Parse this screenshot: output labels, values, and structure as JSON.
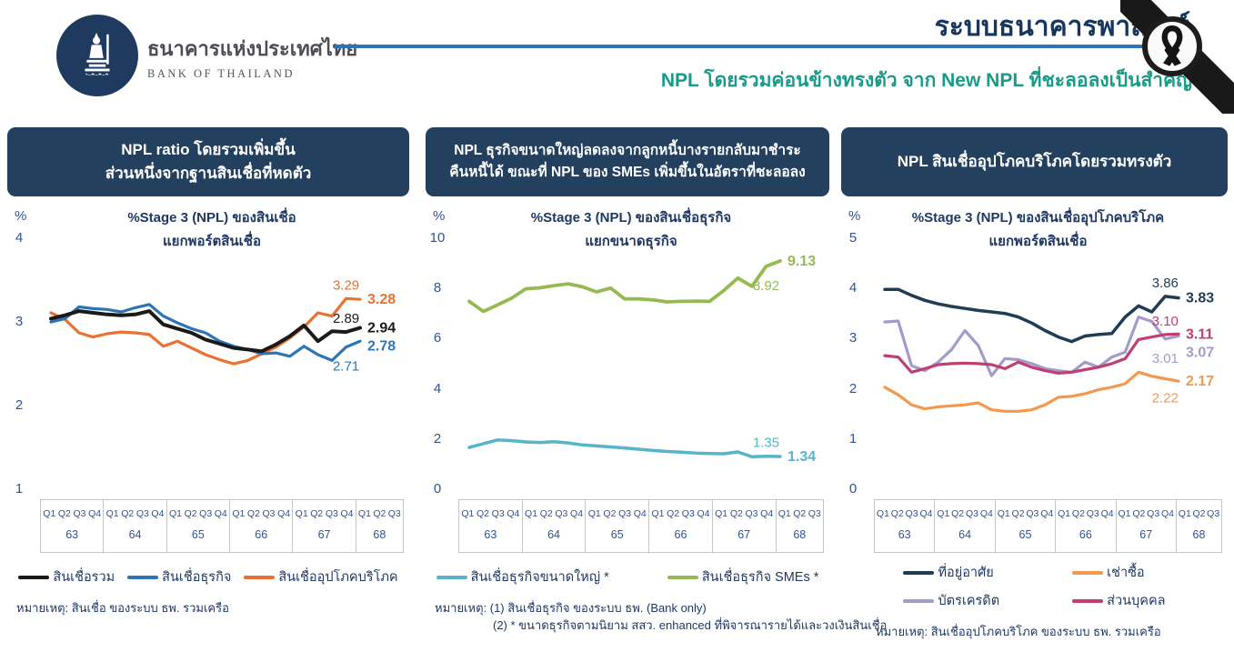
{
  "header": {
    "logo_title_th": "ธนาคารแห่งประเทศไทย",
    "logo_title_en": "BANK OF THAILAND",
    "page_title": "ระบบธนาคารพาณิชย์",
    "subtitle": "NPL โดยรวมค่อนข้างทรงตัว จาก New NPL ที่ชะลอลงเป็นสำคัญ",
    "corner_icon": "black-mourning-ribbon",
    "colors": {
      "title": "#17365D",
      "subtitle": "#189B88",
      "rule": "#2E74B5",
      "logo_bg": "#1E3A5F"
    }
  },
  "theme": {
    "panel_header_bg": "#24405F",
    "axis_text": "#2F5496",
    "note_text": "#1F3864",
    "grid_border": "#C6C6C6"
  },
  "panels": [
    {
      "headline_lines": [
        "NPL ratio โดยรวมเพิ่มขึ้น",
        "ส่วนหนึ่งจากฐานสินเชื่อที่หดตัว"
      ],
      "note_lines": [
        "หมายเหตุ: สินเชื่อ ของระบบ ธพ. รวมเครือ"
      ]
    },
    {
      "headline_lines": [
        "NPL ธุรกิจขนาดใหญ่ลดลงจากลูกหนี้บางรายกลับมาชำระ",
        "คืนหนี้ได้ ขณะที่ NPL ของ SMEs เพิ่มขึ้นในอัตราที่ชะลอลง"
      ],
      "note_lines": [
        "หมายเหตุ: (1) สินเชื่อธุรกิจ ของระบบ ธพ. (Bank only)",
        "(2) * ขนาดธุรกิจตามนิยาม สสว. enhanced ที่พิจารณารายได้และวงเงินสินเชื่อ"
      ]
    },
    {
      "headline_lines": [
        "NPL สินเชื่ออุปโภคบริโภคโดยรวมทรงตัว"
      ],
      "note_lines": [
        "หมายเหตุ: สินเชื่ออุปโภคบริโภค ของระบบ ธพ. รวมเครือ"
      ]
    }
  ],
  "chart_data": [
    {
      "type": "line",
      "unit": "%",
      "title_lines": [
        "%Stage 3 (NPL) ของสินเชื่อ",
        "แยกพอร์ตสินเชื่อ"
      ],
      "ylim": [
        1,
        4
      ],
      "yticks": [
        4,
        3,
        2,
        1
      ],
      "grid": false,
      "legend_layout": "row",
      "x_years": [
        {
          "label": "63",
          "quarters": [
            "Q1",
            "Q2",
            "Q3",
            "Q4"
          ]
        },
        {
          "label": "64",
          "quarters": [
            "Q1",
            "Q2",
            "Q3",
            "Q4"
          ]
        },
        {
          "label": "65",
          "quarters": [
            "Q1",
            "Q2",
            "Q3",
            "Q4"
          ]
        },
        {
          "label": "66",
          "quarters": [
            "Q1",
            "Q2",
            "Q3",
            "Q4"
          ]
        },
        {
          "label": "67",
          "quarters": [
            "Q1",
            "Q2",
            "Q3",
            "Q4"
          ]
        },
        {
          "label": "68",
          "quarters": [
            "Q1",
            "Q2",
            "Q3"
          ]
        }
      ],
      "series": [
        {
          "name": "สินเชื่อรวม",
          "color": "#1A1A1A",
          "width": 4,
          "z": 3,
          "values": [
            3.05,
            3.09,
            3.14,
            3.12,
            3.1,
            3.09,
            3.1,
            3.14,
            2.98,
            2.93,
            2.88,
            2.8,
            2.75,
            2.7,
            2.68,
            2.66,
            2.74,
            2.84,
            2.97,
            2.78,
            2.9,
            2.89,
            2.94
          ],
          "label_prev": "2.89",
          "label_last": "2.94"
        },
        {
          "name": "สินเชื่อธุรกิจ",
          "color": "#2E75B6",
          "width": 3.2,
          "z": 2,
          "prev_below": true,
          "values": [
            3.01,
            3.05,
            3.19,
            3.17,
            3.16,
            3.13,
            3.18,
            3.22,
            3.08,
            3.0,
            2.93,
            2.88,
            2.78,
            2.72,
            2.68,
            2.63,
            2.64,
            2.6,
            2.72,
            2.62,
            2.55,
            2.71,
            2.78
          ],
          "label_prev": "2.71",
          "label_last": "2.78"
        },
        {
          "name": "สินเชื่ออุปโภคบริโภค",
          "color": "#E97132",
          "width": 3.2,
          "z": 1,
          "values": [
            3.12,
            3.04,
            2.88,
            2.83,
            2.87,
            2.89,
            2.88,
            2.86,
            2.72,
            2.78,
            2.7,
            2.62,
            2.56,
            2.51,
            2.55,
            2.63,
            2.71,
            2.82,
            2.95,
            3.12,
            3.08,
            3.29,
            3.28
          ],
          "label_prev": "3.29",
          "label_last": "3.28"
        }
      ]
    },
    {
      "type": "line",
      "unit": "%",
      "title_lines": [
        "%Stage 3 (NPL) ของสินเชื่อธุรกิจ",
        "แยกขนาดธุรกิจ"
      ],
      "ylim": [
        0,
        10
      ],
      "yticks": [
        10,
        8,
        6,
        4,
        2,
        0
      ],
      "grid": false,
      "legend_layout": "row-wide",
      "x_years": [
        {
          "label": "63",
          "quarters": [
            "Q1",
            "Q2",
            "Q3",
            "Q4"
          ]
        },
        {
          "label": "64",
          "quarters": [
            "Q1",
            "Q2",
            "Q3",
            "Q4"
          ]
        },
        {
          "label": "65",
          "quarters": [
            "Q1",
            "Q2",
            "Q3",
            "Q4"
          ]
        },
        {
          "label": "66",
          "quarters": [
            "Q1",
            "Q2",
            "Q3",
            "Q4"
          ]
        },
        {
          "label": "67",
          "quarters": [
            "Q1",
            "Q2",
            "Q3",
            "Q4"
          ]
        },
        {
          "label": "68",
          "quarters": [
            "Q1",
            "Q2",
            "Q3"
          ]
        }
      ],
      "series": [
        {
          "name": "สินเชื่อธุรกิจขนาดใหญ่ *",
          "color": "#58B4C8",
          "width": 3.5,
          "z": 1,
          "values": [
            1.7,
            1.85,
            2.0,
            1.97,
            1.92,
            1.9,
            1.93,
            1.88,
            1.8,
            1.76,
            1.72,
            1.68,
            1.63,
            1.58,
            1.54,
            1.51,
            1.48,
            1.46,
            1.45,
            1.52,
            1.33,
            1.35,
            1.34
          ],
          "label_prev": "1.35",
          "label_last": "1.34"
        },
        {
          "name": "สินเชื่อธุรกิจ SMEs *",
          "color": "#95BA51",
          "width": 3.8,
          "z": 2,
          "prev_below": true,
          "values": [
            7.52,
            7.12,
            7.38,
            7.65,
            8.02,
            8.06,
            8.15,
            8.22,
            8.1,
            7.9,
            8.05,
            7.62,
            7.62,
            7.58,
            7.5,
            7.52,
            7.53,
            7.52,
            7.95,
            8.45,
            8.12,
            8.92,
            9.13
          ],
          "label_prev": "8.92",
          "label_last": "9.13"
        }
      ]
    },
    {
      "type": "line",
      "unit": "%",
      "title_lines": [
        "%Stage 3 (NPL) ของสินเชื่ออุปโภคบริโภค",
        "แยกพอร์ตสินเชื่อ"
      ],
      "ylim": [
        0,
        5
      ],
      "yticks": [
        5,
        4,
        3,
        2,
        1,
        0
      ],
      "grid": false,
      "legend_layout": "grid",
      "x_years": [
        {
          "label": "63",
          "quarters": [
            "Q1",
            "Q2",
            "Q3",
            "Q4"
          ]
        },
        {
          "label": "64",
          "quarters": [
            "Q1",
            "Q2",
            "Q3",
            "Q4"
          ]
        },
        {
          "label": "65",
          "quarters": [
            "Q1",
            "Q2",
            "Q3",
            "Q4"
          ]
        },
        {
          "label": "66",
          "quarters": [
            "Q1",
            "Q2",
            "Q3",
            "Q4"
          ]
        },
        {
          "label": "67",
          "quarters": [
            "Q1",
            "Q2",
            "Q3",
            "Q4"
          ]
        },
        {
          "label": "68",
          "quarters": [
            "Q1",
            "Q2",
            "Q3"
          ]
        }
      ],
      "series": [
        {
          "name": "ที่อยู่อาศัย",
          "color": "#1F3D54",
          "width": 3.5,
          "z": 4,
          "values": [
            4.0,
            4.0,
            3.88,
            3.78,
            3.71,
            3.66,
            3.62,
            3.58,
            3.55,
            3.52,
            3.45,
            3.33,
            3.18,
            3.05,
            2.96,
            3.07,
            3.1,
            3.12,
            3.45,
            3.67,
            3.55,
            3.86,
            3.83
          ],
          "label_prev": "3.86",
          "label_last": "3.83"
        },
        {
          "name": "เช่าซื้อ",
          "color": "#F2984F",
          "width": 3.2,
          "z": 3,
          "prev_below": true,
          "values": [
            2.05,
            1.9,
            1.7,
            1.62,
            1.66,
            1.68,
            1.7,
            1.74,
            1.6,
            1.57,
            1.57,
            1.6,
            1.7,
            1.85,
            1.87,
            1.92,
            2.0,
            2.05,
            2.12,
            2.35,
            2.27,
            2.22,
            2.17
          ],
          "label_prev": "2.22",
          "label_last": "2.17"
        },
        {
          "name": "บัตรเครดิต",
          "color": "#A49BCB",
          "width": 3.2,
          "z": 1,
          "prev_below": true,
          "values": [
            3.35,
            3.37,
            2.48,
            2.38,
            2.55,
            2.8,
            3.18,
            2.88,
            2.28,
            2.62,
            2.6,
            2.52,
            2.42,
            2.38,
            2.35,
            2.55,
            2.45,
            2.65,
            2.75,
            3.45,
            3.36,
            3.01,
            3.07
          ],
          "label_prev": "3.01",
          "label_last": "3.07"
        },
        {
          "name": "ส่วนบุคคล",
          "color": "#BF3F72",
          "width": 3.2,
          "z": 2,
          "values": [
            2.68,
            2.65,
            2.35,
            2.42,
            2.5,
            2.52,
            2.53,
            2.52,
            2.5,
            2.42,
            2.55,
            2.45,
            2.38,
            2.33,
            2.35,
            2.4,
            2.45,
            2.52,
            2.62,
            3.0,
            3.05,
            3.1,
            3.11
          ],
          "label_prev": "3.10",
          "label_last": "3.11"
        }
      ]
    }
  ]
}
